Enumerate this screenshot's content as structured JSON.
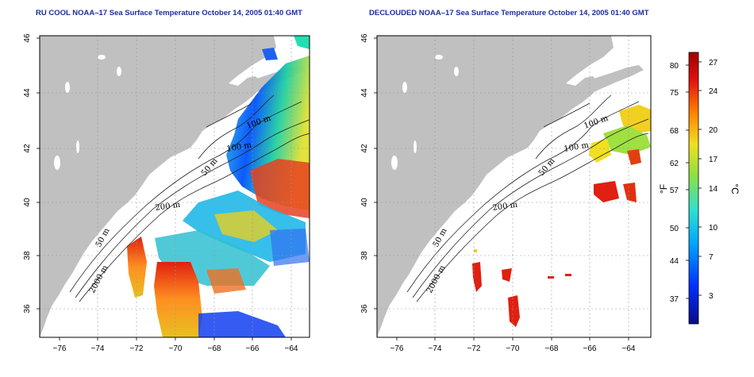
{
  "panels": [
    {
      "id": "left",
      "title": "RU COOL NOAA–17 Sea Surface Temperature October 14, 2005 01:40 GMT",
      "contour_labels": [
        "100 m",
        "100 m",
        "50 m",
        "200 m",
        "50 m",
        "2000 m"
      ]
    },
    {
      "id": "right",
      "title": "DECLOUDED NOAA–17 Sea Surface Temperature October 14, 2005 01:40 GMT",
      "contour_labels": [
        "100 m",
        "100 m",
        "50 m",
        "200 m",
        "50 m",
        "2000 m"
      ]
    }
  ],
  "axes": {
    "lon_ticks": [
      "−76",
      "−74",
      "−72",
      "−70",
      "−68",
      "−66",
      "−64"
    ],
    "lat_ticks": [
      "36",
      "38",
      "40",
      "42",
      "44",
      "46"
    ],
    "lon_range": [
      -77,
      -63
    ],
    "lat_range": [
      35,
      46
    ]
  },
  "colorbar": {
    "fahrenheit_label": "°F",
    "celsius_label": "°C",
    "fahrenheit_ticks": [
      "80",
      "75",
      "68",
      "62",
      "57",
      "50",
      "44",
      "37"
    ],
    "celsius_ticks": [
      "27",
      "24",
      "20",
      "17",
      "14",
      "10",
      "7",
      "3"
    ],
    "celsius_range": [
      0,
      28
    ],
    "colors": [
      "#0a0a8a",
      "#0040ff",
      "#00c0ff",
      "#40e0c0",
      "#a0e040",
      "#f0e020",
      "#ff8000",
      "#e01010",
      "#a00000"
    ]
  },
  "style": {
    "land_color": "#c0c0c0",
    "title_color": "#1a2ea0",
    "grid_color": "#9a9a9a"
  }
}
